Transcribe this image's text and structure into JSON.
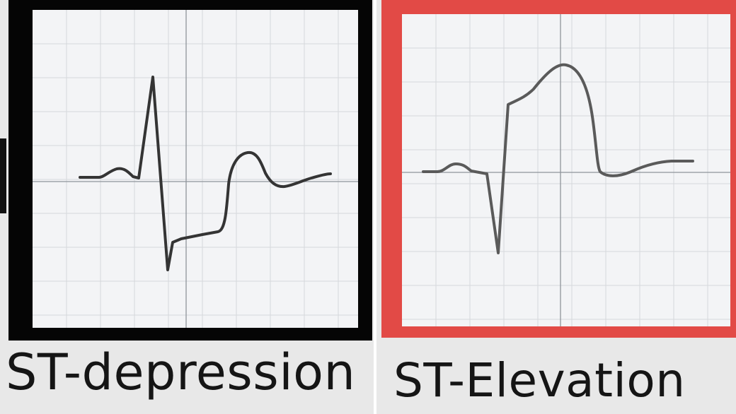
{
  "panels": [
    {
      "label": "ST-depression",
      "frame_color": "#050505",
      "trace_color": "#343434"
    },
    {
      "label": "ST-Elevation",
      "frame_color": "#e24a46",
      "trace_color": "#5a5a5a"
    }
  ],
  "grid": {
    "minor_color": "#d6d8dc",
    "axis_color": "#8f949b"
  }
}
